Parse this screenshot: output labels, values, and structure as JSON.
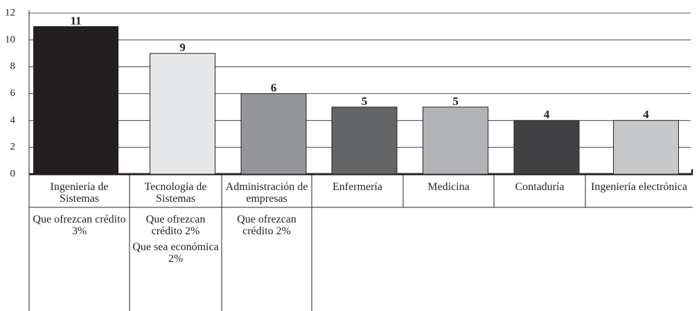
{
  "chart_data": {
    "type": "bar",
    "categories": [
      "Ingeniería de Sistemas",
      "Tecnología de Sistemas",
      "Administración de empresas",
      "Enfermería",
      "Medicina",
      "Contaduría",
      "Ingeniería electrónica"
    ],
    "values": [
      11,
      9,
      6,
      5,
      5,
      4,
      4
    ],
    "colors": [
      "#231f20",
      "#e6e7e8",
      "#939598",
      "#636466",
      "#b1b3b6",
      "#414042",
      "#c7c8ca"
    ],
    "notes": [
      [
        "Que ofrezcan crédito 3%"
      ],
      [
        "Que ofrezcan crédito 2%",
        "Que sea económica 2%"
      ],
      [
        "Que ofrezcan crédito 2%"
      ],
      [],
      [],
      [],
      []
    ],
    "ylim": [
      0,
      12
    ],
    "yticks": [
      0,
      2,
      4,
      6,
      8,
      10,
      12
    ],
    "grid": true
  }
}
